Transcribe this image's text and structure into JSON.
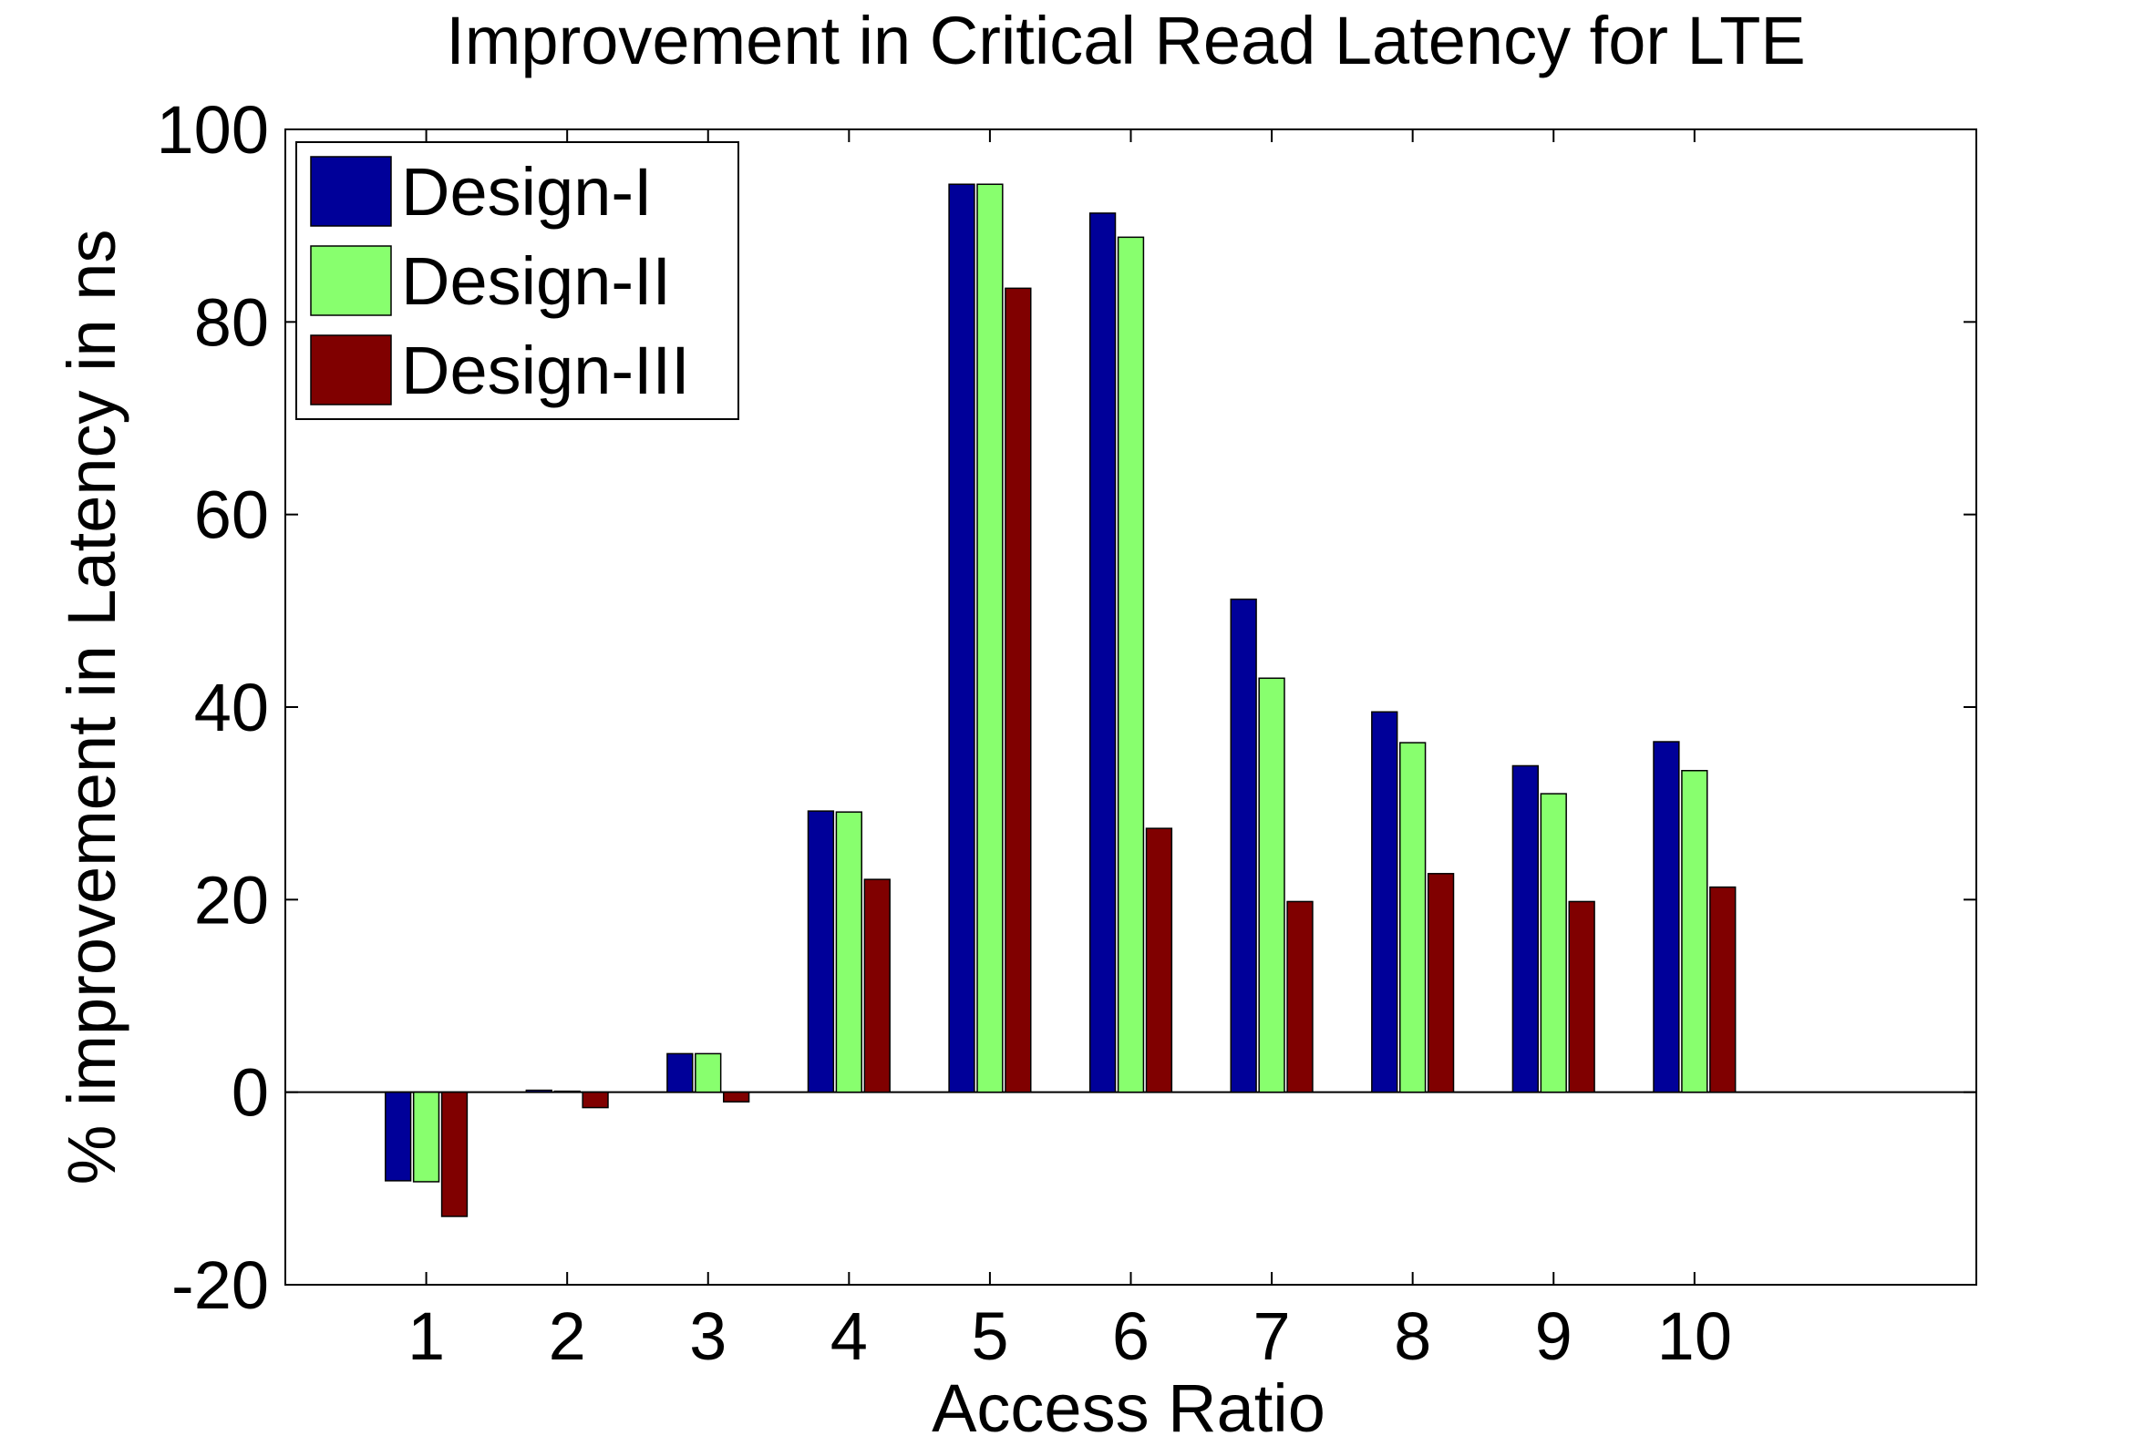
{
  "chart_data": {
    "type": "bar",
    "title": "Improvement in Critical Read Latency for LTE",
    "xlabel": "Access Ratio",
    "ylabel": "% improvement in Latency in ns",
    "categories": [
      "1",
      "2",
      "3",
      "4",
      "5",
      "6",
      "7",
      "8",
      "9",
      "10"
    ],
    "xlim": [
      0,
      12
    ],
    "ylim": [
      -20,
      100
    ],
    "yticks": [
      -20,
      0,
      20,
      40,
      60,
      80,
      100
    ],
    "legend_position": "top-left",
    "grid": false,
    "series": [
      {
        "name": "Design-I",
        "color": "#000099",
        "values": [
          -9.2,
          0.2,
          4.0,
          29.2,
          94.3,
          91.3,
          51.2,
          39.5,
          33.9,
          36.4
        ]
      },
      {
        "name": "Design-II",
        "color": "#88ff6e",
        "values": [
          -9.3,
          0.1,
          4.0,
          29.1,
          94.3,
          88.8,
          43.0,
          36.3,
          31.0,
          33.4
        ]
      },
      {
        "name": "Design-III",
        "color": "#800000",
        "values": [
          -12.9,
          -1.6,
          -1.0,
          22.1,
          83.5,
          27.4,
          19.8,
          22.7,
          19.8,
          21.3
        ]
      }
    ]
  }
}
